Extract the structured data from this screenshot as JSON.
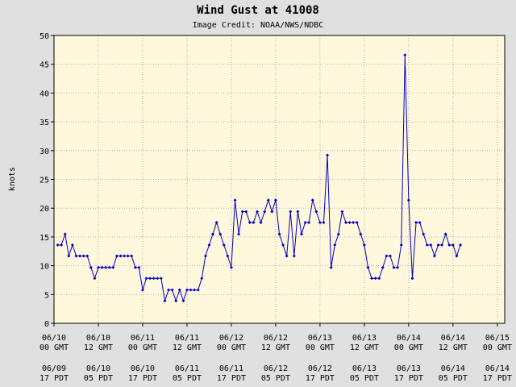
{
  "chart_data": {
    "type": "line",
    "title": "Wind Gust at 41008",
    "subtitle": "Image Credit: NOAA/NWS/NDBC",
    "y_label": "knots",
    "x": [
      1,
      2,
      3,
      4,
      5,
      6,
      7,
      8,
      9,
      10,
      11,
      12,
      13,
      14,
      15,
      16,
      17,
      18,
      19,
      20,
      21,
      22,
      23,
      24,
      25,
      26,
      27,
      28,
      29,
      30,
      31,
      32,
      33,
      34,
      35,
      36,
      37,
      38,
      39,
      40,
      41,
      42,
      43,
      44,
      45,
      46,
      47,
      48,
      49,
      50,
      51,
      52,
      53,
      54,
      55,
      56,
      57,
      58,
      59,
      60,
      61,
      62,
      63,
      64,
      65,
      66,
      67,
      68,
      69,
      70,
      71,
      72,
      73,
      74,
      75,
      76,
      77,
      78,
      79,
      80,
      81,
      82,
      83,
      84,
      85,
      86,
      87,
      88,
      89,
      90,
      91,
      92,
      93,
      94,
      95,
      96,
      97,
      98,
      99,
      100,
      101,
      102,
      103,
      104,
      105,
      106,
      107,
      108,
      109,
      110
    ],
    "series": [
      {
        "name": "Wind Gust",
        "color": "#0000cc",
        "values": [
          13.6,
          13.6,
          15.5,
          11.7,
          13.6,
          11.7,
          11.7,
          11.7,
          11.7,
          9.7,
          7.8,
          9.7,
          9.7,
          9.7,
          9.7,
          9.7,
          11.7,
          11.7,
          11.7,
          11.7,
          11.7,
          9.7,
          9.7,
          5.8,
          7.8,
          7.8,
          7.8,
          7.8,
          7.8,
          3.9,
          5.8,
          5.8,
          3.9,
          5.8,
          3.9,
          5.8,
          5.8,
          5.8,
          5.8,
          7.8,
          11.7,
          13.6,
          15.5,
          17.5,
          15.5,
          13.6,
          11.7,
          9.7,
          21.4,
          15.5,
          19.4,
          19.4,
          17.5,
          17.5,
          19.4,
          17.5,
          19.4,
          21.4,
          19.4,
          21.4,
          15.5,
          13.6,
          11.7,
          19.4,
          11.7,
          19.4,
          15.5,
          17.5,
          17.5,
          21.4,
          19.4,
          17.5,
          17.5,
          29.2,
          9.7,
          13.6,
          15.5,
          19.4,
          17.5,
          17.5,
          17.5,
          17.5,
          15.5,
          13.6,
          9.7,
          7.8,
          7.8,
          7.8,
          9.7,
          11.7,
          11.7,
          9.7,
          9.7,
          13.6,
          46.6,
          21.4,
          7.8,
          17.5,
          17.5,
          15.5,
          13.6,
          13.6,
          11.7,
          13.6,
          13.6,
          15.5,
          13.6,
          13.6,
          11.7,
          13.6
        ]
      }
    ],
    "xlim": [
      0,
      122
    ],
    "xticks": [
      {
        "value": 0,
        "label": "06/10 00 GMT"
      },
      {
        "value": 12,
        "label": "06/10 12 GMT"
      },
      {
        "value": 24,
        "label": "06/11 00 GMT"
      },
      {
        "value": 36,
        "label": "06/11 12 GMT"
      },
      {
        "value": 48,
        "label": "06/12 00 GMT"
      },
      {
        "value": 60,
        "label": "06/12 12 GMT"
      },
      {
        "value": 72,
        "label": "06/13 00 GMT"
      },
      {
        "value": 84,
        "label": "06/13 12 GMT"
      },
      {
        "value": 96,
        "label": "06/14 00 GMT"
      },
      {
        "value": 108,
        "label": "06/14 12 GMT"
      },
      {
        "value": 120,
        "label": "06/15 00 GMT"
      }
    ],
    "xtick_labels_local": [
      "06/09 17 PDT",
      "06/10 05 PDT",
      "06/10 17 PDT",
      "06/11 05 PDT",
      "06/11 17 PDT",
      "06/12 05 PDT",
      "06/12 17 PDT",
      "06/13 05 PDT",
      "06/13 17 PDT",
      "06/14 05 PDT",
      "06/14 17 PDT"
    ],
    "ylim": [
      0,
      50
    ],
    "yticks": [
      0,
      5,
      10,
      15,
      20,
      25,
      30,
      35,
      40,
      45,
      50
    ],
    "grid": true,
    "background": "#e0e0e0",
    "plot_background": "#fff8dc"
  }
}
